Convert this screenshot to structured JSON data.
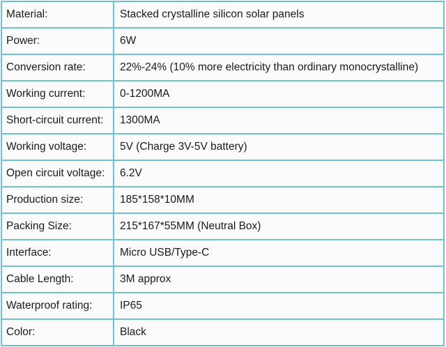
{
  "specs": [
    {
      "label": "Material:",
      "value": "Stacked crystalline silicon solar panels"
    },
    {
      "label": "Power:",
      "value": "6W"
    },
    {
      "label": "Conversion rate:",
      "value": "22%-24% (10% more electricity than ordinary monocrystalline)"
    },
    {
      "label": "Working current:",
      "value": "0-1200MA"
    },
    {
      "label": "Short-circuit current:",
      "value": "1300MA"
    },
    {
      "label": "Working voltage:",
      "value": "5V (Charge 3V-5V battery)"
    },
    {
      "label": "Open circuit voltage:",
      "value": "6.2V"
    },
    {
      "label": "Production size:",
      "value": "185*158*10MM"
    },
    {
      "label": "Packing Size:",
      "value": "215*167*55MM (Neutral Box)"
    },
    {
      "label": "Interface:",
      "value": "Micro USB/Type-C"
    },
    {
      "label": "Cable Length:",
      "value": "3M approx"
    },
    {
      "label": "Waterproof rating:",
      "value": "IP65"
    },
    {
      "label": "Color:",
      "value": "Black"
    }
  ],
  "colors": {
    "border": "#6cc3cf",
    "cell_background": "#fbfbfb",
    "text": "#1a1a1a"
  }
}
